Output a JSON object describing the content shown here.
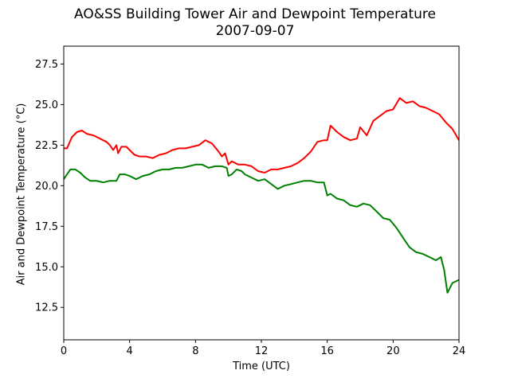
{
  "chart_data": {
    "type": "line",
    "title": "AO&SS Building Tower Air and Dewpoint Temperature",
    "subtitle": "2007-09-07",
    "xlabel": "Time (UTC)",
    "ylabel": "Air and Dewpoint Temperature (°C)",
    "xlim": [
      0,
      24
    ],
    "ylim": [
      10.5,
      28.6
    ],
    "xticks": [
      0,
      4,
      8,
      12,
      16,
      20,
      24
    ],
    "yticks": [
      12.5,
      15.0,
      17.5,
      20.0,
      22.5,
      25.0,
      27.5
    ],
    "grid": false,
    "series": [
      {
        "color": "#ff0000",
        "x": [
          0,
          0.2,
          0.5,
          0.8,
          1.1,
          1.4,
          1.8,
          2.2,
          2.6,
          2.8,
          3.0,
          3.2,
          3.3,
          3.5,
          3.8,
          4.0,
          4.3,
          4.6,
          5.0,
          5.4,
          5.8,
          6.2,
          6.6,
          7.0,
          7.4,
          7.8,
          8.2,
          8.6,
          9.0,
          9.4,
          9.6,
          9.8,
          10.0,
          10.2,
          10.6,
          11.0,
          11.4,
          11.8,
          12.2,
          12.6,
          13.0,
          13.4,
          13.8,
          14.2,
          14.6,
          15.0,
          15.4,
          15.8,
          16.0,
          16.2,
          16.6,
          17.0,
          17.4,
          17.8,
          18.0,
          18.4,
          18.8,
          19.2,
          19.6,
          20.0,
          20.4,
          20.8,
          21.2,
          21.6,
          22.0,
          22.4,
          22.8,
          23.2,
          23.6,
          24.0
        ],
        "y": [
          22.3,
          22.3,
          23.0,
          23.3,
          23.4,
          23.2,
          23.1,
          22.9,
          22.7,
          22.5,
          22.2,
          22.5,
          22.0,
          22.4,
          22.4,
          22.2,
          21.9,
          21.8,
          21.8,
          21.7,
          21.9,
          22.0,
          22.2,
          22.3,
          22.3,
          22.4,
          22.5,
          22.8,
          22.6,
          22.1,
          21.8,
          22.0,
          21.3,
          21.5,
          21.3,
          21.3,
          21.2,
          20.9,
          20.8,
          21.0,
          21.0,
          21.1,
          21.2,
          21.4,
          21.7,
          22.1,
          22.7,
          22.8,
          22.8,
          23.7,
          23.3,
          23.0,
          22.8,
          22.9,
          23.6,
          23.1,
          24.0,
          24.3,
          24.6,
          24.7,
          25.4,
          25.1,
          25.2,
          24.9,
          24.8,
          24.6,
          24.4,
          23.9,
          23.5,
          22.8
        ]
      },
      {
        "color": "#008000",
        "x": [
          0,
          0.2,
          0.4,
          0.7,
          1.0,
          1.3,
          1.6,
          2.0,
          2.4,
          2.8,
          3.2,
          3.4,
          3.7,
          4.0,
          4.4,
          4.8,
          5.2,
          5.6,
          6.0,
          6.4,
          6.8,
          7.2,
          7.6,
          8.0,
          8.4,
          8.8,
          9.2,
          9.6,
          9.9,
          10.0,
          10.2,
          10.5,
          10.8,
          11.0,
          11.4,
          11.8,
          12.2,
          12.6,
          13.0,
          13.4,
          13.8,
          14.2,
          14.6,
          15.0,
          15.4,
          15.8,
          16.0,
          16.2,
          16.6,
          17.0,
          17.4,
          17.8,
          18.2,
          18.6,
          19.0,
          19.4,
          19.8,
          20.2,
          20.6,
          21.0,
          21.4,
          21.8,
          22.2,
          22.6,
          22.9,
          23.1,
          23.3,
          23.6,
          24.0
        ],
        "y": [
          20.4,
          20.7,
          21.0,
          21.0,
          20.8,
          20.5,
          20.3,
          20.3,
          20.2,
          20.3,
          20.3,
          20.7,
          20.7,
          20.6,
          20.4,
          20.6,
          20.7,
          20.9,
          21.0,
          21.0,
          21.1,
          21.1,
          21.2,
          21.3,
          21.3,
          21.1,
          21.2,
          21.2,
          21.1,
          20.6,
          20.7,
          21.0,
          20.9,
          20.7,
          20.5,
          20.3,
          20.4,
          20.1,
          19.8,
          20.0,
          20.1,
          20.2,
          20.3,
          20.3,
          20.2,
          20.2,
          19.4,
          19.5,
          19.2,
          19.1,
          18.8,
          18.7,
          18.9,
          18.8,
          18.4,
          18.0,
          17.9,
          17.4,
          16.8,
          16.2,
          15.9,
          15.8,
          15.6,
          15.4,
          15.6,
          14.8,
          13.4,
          14.0,
          14.2
        ]
      }
    ]
  }
}
